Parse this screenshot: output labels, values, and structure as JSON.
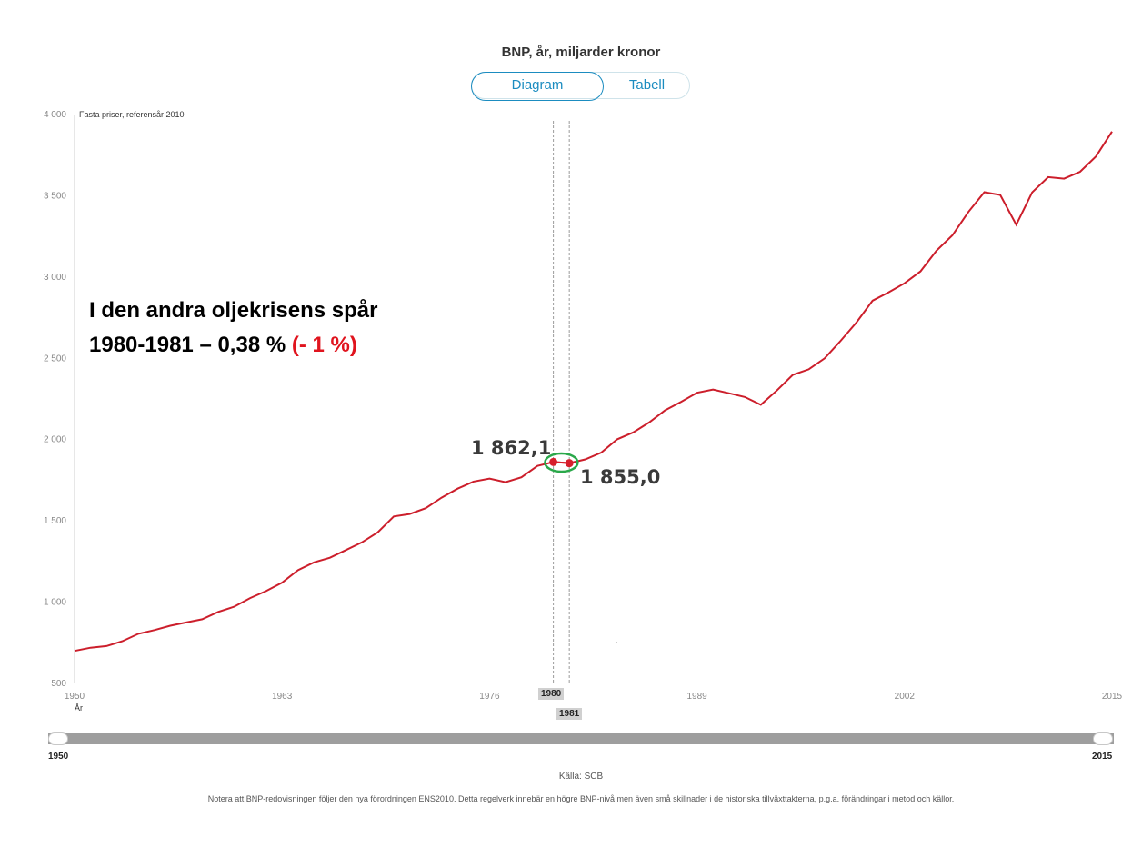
{
  "title": "BNP, år, miljarder kronor",
  "toggle": {
    "diagram_label": "Diagram",
    "table_label": "Tabell"
  },
  "colors": {
    "line": "#cc1e2b",
    "accent": "#1b8cc0",
    "marker": "#d61f2c",
    "ellipse": "#2aa84a",
    "highlight": "#e0141e"
  },
  "annotation": {
    "line1": "I den andra oljekrisens spår",
    "line2_text": "1980-1981 – 0,38 %",
    "line2_highlight": "(- 1 %)"
  },
  "highlight": {
    "value_1980_label": "1 862,1",
    "value_1981_label": "1 855,0",
    "year_1980_label": "1980",
    "year_1981_label": "1981"
  },
  "slider": {
    "start_label": "1950",
    "end_label": "2015"
  },
  "source": "Källa: SCB",
  "footnote": "Notera att BNP-redovisningen följer den nya förordningen ENS2010. Detta regelverk innebär en högre BNP-nivå men även små skillnader i de historiska tillväxttakterna, p.g.a. förändringar i metod och källor.",
  "chart_data": {
    "type": "line",
    "title": "BNP, år, miljarder kronor",
    "subtitle": "Fasta priser, referensår 2010",
    "xlabel": "År",
    "ylabel": "",
    "xlim": [
      1950,
      2015
    ],
    "ylim": [
      500,
      4000
    ],
    "x_ticks": [
      1950,
      1963,
      1976,
      1989,
      2002,
      2015
    ],
    "y_ticks": [
      500,
      1000,
      1500,
      2000,
      2500,
      3000,
      3500,
      4000
    ],
    "y_tick_labels": [
      "500",
      "1 000",
      "1 500",
      "2 000",
      "2 500",
      "3 000",
      "3 500",
      "4 000"
    ],
    "series": [
      {
        "name": "BNP",
        "x": [
          1950,
          1951,
          1952,
          1953,
          1954,
          1955,
          1956,
          1957,
          1958,
          1959,
          1960,
          1961,
          1962,
          1963,
          1964,
          1965,
          1966,
          1967,
          1968,
          1969,
          1970,
          1971,
          1972,
          1973,
          1974,
          1975,
          1976,
          1977,
          1978,
          1979,
          1980,
          1981,
          1982,
          1983,
          1984,
          1985,
          1986,
          1987,
          1988,
          1989,
          1990,
          1991,
          1992,
          1993,
          1994,
          1995,
          1996,
          1997,
          1998,
          1999,
          2000,
          2001,
          2002,
          2003,
          2004,
          2005,
          2006,
          2007,
          2008,
          2009,
          2010,
          2011,
          2012,
          2013,
          2014,
          2015
        ],
        "values": [
          700,
          720,
          730,
          760,
          805,
          828,
          855,
          875,
          895,
          940,
          972,
          1025,
          1068,
          1120,
          1197,
          1245,
          1273,
          1320,
          1368,
          1430,
          1527,
          1542,
          1578,
          1643,
          1698,
          1742,
          1760,
          1738,
          1768,
          1838,
          1862.1,
          1855.0,
          1878,
          1920,
          2002,
          2044,
          2105,
          2180,
          2232,
          2288,
          2308,
          2285,
          2262,
          2214,
          2302,
          2398,
          2432,
          2500,
          2608,
          2722,
          2855,
          2905,
          2962,
          3035,
          3162,
          3257,
          3400,
          3522,
          3505,
          3322,
          3521,
          3615,
          3605,
          3648,
          3742,
          3895
        ]
      }
    ],
    "highlight_points": [
      {
        "x": 1980,
        "value": 1862.1,
        "label": "1 862,1"
      },
      {
        "x": 1981,
        "value": 1855.0,
        "label": "1 855,0"
      }
    ],
    "annotations": [
      "I den andra oljekrisens spår",
      "1980-1981 – 0,38 % (- 1 %)"
    ]
  }
}
